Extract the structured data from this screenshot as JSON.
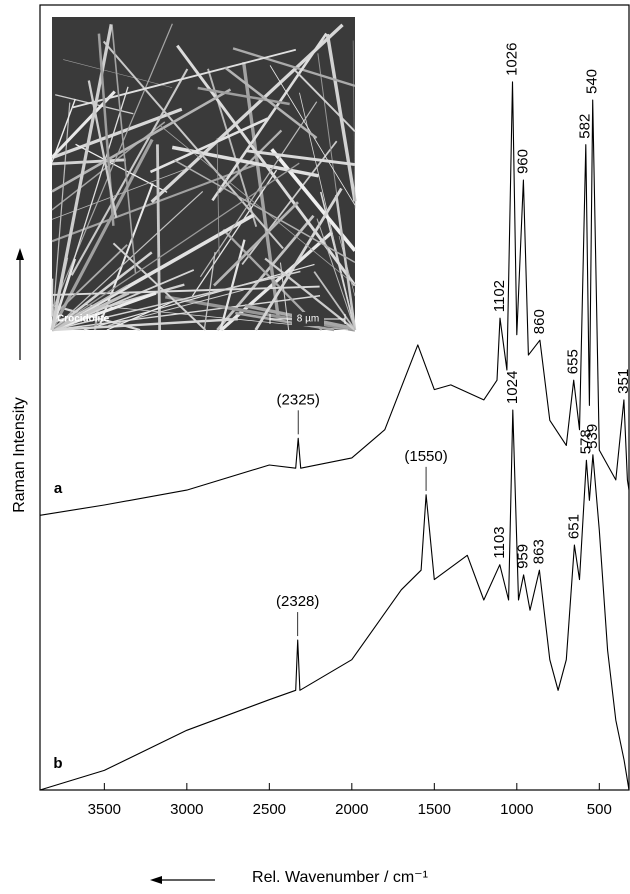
{
  "chart_data": {
    "type": "line",
    "x_label": "Rel. Wavenumber / cm⁻¹",
    "y_label": "Raman Intensity",
    "xlim": [
      3890,
      320
    ],
    "xticks": [
      3500,
      3000,
      2500,
      2000,
      1500,
      1000,
      500
    ],
    "ylim": [
      0,
      100
    ],
    "inset": {
      "label": "Crocidolite",
      "scale_bar": "8 µm"
    },
    "series": [
      {
        "name": "a",
        "color": "#000000",
        "x": [
          3890,
          3500,
          3000,
          2500,
          2340,
          2325,
          2310,
          2000,
          1800,
          1600,
          1500,
          1400,
          1200,
          1120,
          1102,
          1060,
          1026,
          1000,
          960,
          930,
          860,
          800,
          700,
          655,
          620,
          582,
          560,
          540,
          500,
          400,
          351,
          330,
          320
        ],
        "values": [
          35.0,
          36.3,
          38.2,
          41.4,
          41.0,
          44.8,
          41.0,
          42.3,
          45.9,
          56.7,
          51.0,
          51.6,
          49.7,
          52.2,
          60.1,
          53.5,
          90.2,
          58.0,
          77.7,
          55.4,
          57.3,
          47.1,
          43.9,
          52.2,
          45.9,
          82.2,
          49.0,
          87.9,
          43.3,
          39.5,
          49.7,
          39.5,
          38.2
        ],
        "peaks": [
          {
            "x": 2325,
            "label": "(2325)",
            "vertical": false
          },
          {
            "x": 1102,
            "label": "1102",
            "vertical": true
          },
          {
            "x": 1026,
            "label": "1026",
            "vertical": true
          },
          {
            "x": 960,
            "label": "960",
            "vertical": true
          },
          {
            "x": 860,
            "label": "860",
            "vertical": true
          },
          {
            "x": 655,
            "label": "655",
            "vertical": true
          },
          {
            "x": 582,
            "label": "582",
            "vertical": true
          },
          {
            "x": 540,
            "label": "540",
            "vertical": true
          },
          {
            "x": 351,
            "label": "351",
            "vertical": true
          }
        ]
      },
      {
        "name": "b",
        "color": "#000000",
        "x": [
          3890,
          3500,
          3000,
          2500,
          2340,
          2328,
          2315,
          2000,
          1700,
          1580,
          1550,
          1500,
          1300,
          1200,
          1103,
          1050,
          1024,
          990,
          959,
          920,
          863,
          800,
          750,
          700,
          651,
          620,
          578,
          560,
          539,
          500,
          450,
          400,
          350,
          320
        ],
        "values": [
          0,
          2.5,
          7.6,
          11.5,
          12.7,
          19.1,
          12.7,
          16.6,
          25.5,
          28.0,
          37.6,
          26.8,
          29.9,
          24.2,
          28.7,
          24.2,
          48.4,
          24.2,
          27.4,
          22.9,
          28.0,
          16.6,
          12.7,
          16.6,
          31.2,
          26.8,
          42.0,
          36.9,
          42.7,
          33.1,
          17.8,
          8.9,
          3.8,
          0
        ],
        "peaks": [
          {
            "x": 2328,
            "label": "(2328)",
            "vertical": false
          },
          {
            "x": 1550,
            "label": "(1550)",
            "vertical": false
          },
          {
            "x": 1103,
            "label": "1103",
            "vertical": true
          },
          {
            "x": 1024,
            "label": "1024",
            "vertical": true
          },
          {
            "x": 959,
            "label": "959",
            "vertical": true
          },
          {
            "x": 863,
            "label": "863",
            "vertical": true
          },
          {
            "x": 651,
            "label": "651",
            "vertical": true
          },
          {
            "x": 578,
            "label": "578",
            "vertical": true
          },
          {
            "x": 539,
            "label": "539",
            "vertical": true
          }
        ]
      }
    ]
  }
}
